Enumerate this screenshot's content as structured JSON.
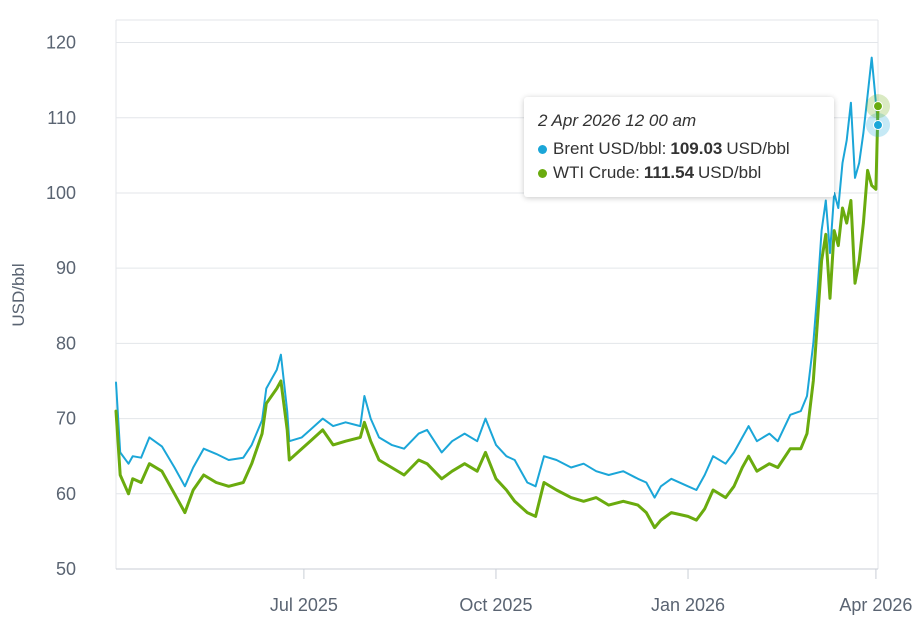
{
  "chart_data": {
    "type": "line",
    "title": "",
    "ylabel": "USD/bbl",
    "ylim": [
      50,
      123
    ],
    "yticks": [
      50,
      60,
      70,
      80,
      90,
      100,
      110,
      120
    ],
    "xticks": [
      {
        "label": "Jul 2025",
        "date": "2025-07-01"
      },
      {
        "label": "Oct 2025",
        "date": "2025-10-01"
      },
      {
        "label": "Jan 2026",
        "date": "2026-01-01"
      },
      {
        "label": "Apr 2026",
        "date": "2026-04-01"
      }
    ],
    "xrange": [
      "2025-04-02",
      "2026-04-02"
    ],
    "grid": true,
    "series": [
      {
        "name": "Brent USD/bbl",
        "color": "#1ba6d8",
        "points": [
          [
            "2025-04-02",
            74.8
          ],
          [
            "2025-04-04",
            65.5
          ],
          [
            "2025-04-08",
            64.0
          ],
          [
            "2025-04-10",
            65.0
          ],
          [
            "2025-04-14",
            64.8
          ],
          [
            "2025-04-18",
            67.5
          ],
          [
            "2025-04-24",
            66.3
          ],
          [
            "2025-04-30",
            63.5
          ],
          [
            "2025-05-05",
            61.0
          ],
          [
            "2025-05-09",
            63.5
          ],
          [
            "2025-05-14",
            66.0
          ],
          [
            "2025-05-20",
            65.3
          ],
          [
            "2025-05-26",
            64.5
          ],
          [
            "2025-06-02",
            64.8
          ],
          [
            "2025-06-06",
            66.5
          ],
          [
            "2025-06-11",
            69.8
          ],
          [
            "2025-06-13",
            74.0
          ],
          [
            "2025-06-18",
            76.5
          ],
          [
            "2025-06-20",
            78.5
          ],
          [
            "2025-06-23",
            71.0
          ],
          [
            "2025-06-24",
            67.0
          ],
          [
            "2025-06-30",
            67.5
          ],
          [
            "2025-07-04",
            68.5
          ],
          [
            "2025-07-10",
            70.0
          ],
          [
            "2025-07-15",
            69.0
          ],
          [
            "2025-07-21",
            69.5
          ],
          [
            "2025-07-28",
            69.0
          ],
          [
            "2025-07-30",
            73.0
          ],
          [
            "2025-08-02",
            70.0
          ],
          [
            "2025-08-06",
            67.5
          ],
          [
            "2025-08-12",
            66.5
          ],
          [
            "2025-08-18",
            66.0
          ],
          [
            "2025-08-25",
            68.0
          ],
          [
            "2025-08-29",
            68.5
          ],
          [
            "2025-09-05",
            65.5
          ],
          [
            "2025-09-10",
            67.0
          ],
          [
            "2025-09-16",
            68.0
          ],
          [
            "2025-09-22",
            67.0
          ],
          [
            "2025-09-26",
            70.0
          ],
          [
            "2025-10-01",
            66.5
          ],
          [
            "2025-10-06",
            65.0
          ],
          [
            "2025-10-10",
            64.5
          ],
          [
            "2025-10-16",
            61.5
          ],
          [
            "2025-10-20",
            61.0
          ],
          [
            "2025-10-24",
            65.0
          ],
          [
            "2025-10-30",
            64.5
          ],
          [
            "2025-11-06",
            63.5
          ],
          [
            "2025-11-12",
            64.0
          ],
          [
            "2025-11-18",
            63.0
          ],
          [
            "2025-11-24",
            62.5
          ],
          [
            "2025-12-01",
            63.0
          ],
          [
            "2025-12-08",
            62.0
          ],
          [
            "2025-12-12",
            61.5
          ],
          [
            "2025-12-16",
            59.5
          ],
          [
            "2025-12-19",
            61.0
          ],
          [
            "2025-12-24",
            62.0
          ],
          [
            "2026-01-01",
            61.0
          ],
          [
            "2026-01-05",
            60.5
          ],
          [
            "2026-01-09",
            62.5
          ],
          [
            "2026-01-13",
            65.0
          ],
          [
            "2026-01-19",
            64.0
          ],
          [
            "2026-01-23",
            65.5
          ],
          [
            "2026-01-27",
            67.5
          ],
          [
            "2026-01-30",
            69.0
          ],
          [
            "2026-02-03",
            67.0
          ],
          [
            "2026-02-09",
            68.0
          ],
          [
            "2026-02-13",
            67.0
          ],
          [
            "2026-02-19",
            70.5
          ],
          [
            "2026-02-24",
            71.0
          ],
          [
            "2026-02-27",
            73.0
          ],
          [
            "2026-03-02",
            80.0
          ],
          [
            "2026-03-04",
            87.0
          ],
          [
            "2026-03-06",
            95.0
          ],
          [
            "2026-03-08",
            99.0
          ],
          [
            "2026-03-10",
            92.0
          ],
          [
            "2026-03-12",
            100.0
          ],
          [
            "2026-03-14",
            98.0
          ],
          [
            "2026-03-16",
            104.0
          ],
          [
            "2026-03-18",
            107.0
          ],
          [
            "2026-03-20",
            112.0
          ],
          [
            "2026-03-22",
            102.0
          ],
          [
            "2026-03-24",
            104.0
          ],
          [
            "2026-03-26",
            108.0
          ],
          [
            "2026-03-28",
            113.0
          ],
          [
            "2026-03-30",
            118.0
          ],
          [
            "2026-04-01",
            112.0
          ],
          [
            "2026-04-02",
            109.03
          ]
        ]
      },
      {
        "name": "WTI Crude",
        "color": "#6aab0e",
        "points": [
          [
            "2025-04-02",
            71.0
          ],
          [
            "2025-04-04",
            62.5
          ],
          [
            "2025-04-08",
            60.0
          ],
          [
            "2025-04-10",
            62.0
          ],
          [
            "2025-04-14",
            61.5
          ],
          [
            "2025-04-18",
            64.0
          ],
          [
            "2025-04-24",
            63.0
          ],
          [
            "2025-04-30",
            60.0
          ],
          [
            "2025-05-05",
            57.5
          ],
          [
            "2025-05-09",
            60.5
          ],
          [
            "2025-05-14",
            62.5
          ],
          [
            "2025-05-20",
            61.5
          ],
          [
            "2025-05-26",
            61.0
          ],
          [
            "2025-06-02",
            61.5
          ],
          [
            "2025-06-06",
            64.0
          ],
          [
            "2025-06-11",
            68.0
          ],
          [
            "2025-06-13",
            72.0
          ],
          [
            "2025-06-18",
            74.0
          ],
          [
            "2025-06-20",
            75.0
          ],
          [
            "2025-06-23",
            68.5
          ],
          [
            "2025-06-24",
            64.5
          ],
          [
            "2025-06-30",
            66.0
          ],
          [
            "2025-07-04",
            67.0
          ],
          [
            "2025-07-10",
            68.5
          ],
          [
            "2025-07-15",
            66.5
          ],
          [
            "2025-07-21",
            67.0
          ],
          [
            "2025-07-28",
            67.5
          ],
          [
            "2025-07-30",
            69.5
          ],
          [
            "2025-08-02",
            67.0
          ],
          [
            "2025-08-06",
            64.5
          ],
          [
            "2025-08-12",
            63.5
          ],
          [
            "2025-08-18",
            62.5
          ],
          [
            "2025-08-25",
            64.5
          ],
          [
            "2025-08-29",
            64.0
          ],
          [
            "2025-09-05",
            62.0
          ],
          [
            "2025-09-10",
            63.0
          ],
          [
            "2025-09-16",
            64.0
          ],
          [
            "2025-09-22",
            63.0
          ],
          [
            "2025-09-26",
            65.5
          ],
          [
            "2025-10-01",
            62.0
          ],
          [
            "2025-10-06",
            60.5
          ],
          [
            "2025-10-10",
            59.0
          ],
          [
            "2025-10-16",
            57.5
          ],
          [
            "2025-10-20",
            57.0
          ],
          [
            "2025-10-24",
            61.5
          ],
          [
            "2025-10-30",
            60.5
          ],
          [
            "2025-11-06",
            59.5
          ],
          [
            "2025-11-12",
            59.0
          ],
          [
            "2025-11-18",
            59.5
          ],
          [
            "2025-11-24",
            58.5
          ],
          [
            "2025-12-01",
            59.0
          ],
          [
            "2025-12-08",
            58.5
          ],
          [
            "2025-12-12",
            57.5
          ],
          [
            "2025-12-16",
            55.5
          ],
          [
            "2025-12-19",
            56.5
          ],
          [
            "2025-12-24",
            57.5
          ],
          [
            "2026-01-01",
            57.0
          ],
          [
            "2026-01-05",
            56.5
          ],
          [
            "2026-01-09",
            58.0
          ],
          [
            "2026-01-13",
            60.5
          ],
          [
            "2026-01-19",
            59.5
          ],
          [
            "2026-01-23",
            61.0
          ],
          [
            "2026-01-27",
            63.5
          ],
          [
            "2026-01-30",
            65.0
          ],
          [
            "2026-02-03",
            63.0
          ],
          [
            "2026-02-09",
            64.0
          ],
          [
            "2026-02-13",
            63.5
          ],
          [
            "2026-02-19",
            66.0
          ],
          [
            "2026-02-24",
            66.0
          ],
          [
            "2026-02-27",
            68.0
          ],
          [
            "2026-03-02",
            75.0
          ],
          [
            "2026-03-04",
            83.0
          ],
          [
            "2026-03-06",
            91.0
          ],
          [
            "2026-03-08",
            94.5
          ],
          [
            "2026-03-10",
            86.0
          ],
          [
            "2026-03-12",
            95.0
          ],
          [
            "2026-03-14",
            93.0
          ],
          [
            "2026-03-16",
            98.0
          ],
          [
            "2026-03-18",
            96.0
          ],
          [
            "2026-03-20",
            99.0
          ],
          [
            "2026-03-22",
            88.0
          ],
          [
            "2026-03-24",
            91.0
          ],
          [
            "2026-03-26",
            96.0
          ],
          [
            "2026-03-28",
            103.0
          ],
          [
            "2026-03-30",
            101.0
          ],
          [
            "2026-04-01",
            100.5
          ],
          [
            "2026-04-02",
            111.54
          ]
        ]
      }
    ]
  },
  "tooltip": {
    "title": "2 Apr 2026 12 00 am",
    "rows": [
      {
        "label": "Brent USD/bbl:",
        "value": "109.03",
        "unit": "USD/bbl",
        "color": "#1ba6d8"
      },
      {
        "label": "WTI Crude:",
        "value": "111.54",
        "unit": "USD/bbl",
        "color": "#6aab0e"
      }
    ]
  }
}
